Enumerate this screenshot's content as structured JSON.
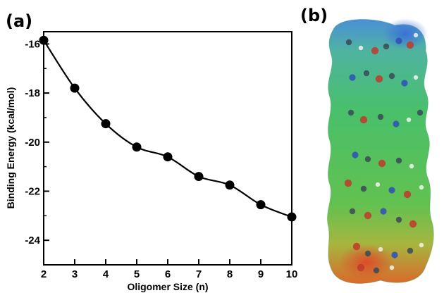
{
  "panels": {
    "a_label": "(a)",
    "b_label": "(b)"
  },
  "chart_data": {
    "type": "line",
    "title": "",
    "xlabel": "Oligomer Size (n)",
    "ylabel": "Binding Energy (kcal/mol)",
    "x": [
      2,
      3,
      4,
      5,
      6,
      7,
      8,
      9,
      10
    ],
    "series": [
      {
        "values": [
          -15.85,
          -17.8,
          -19.25,
          -20.2,
          -20.6,
          -21.4,
          -21.75,
          -22.55,
          -23.05
        ]
      }
    ],
    "xlim": [
      2,
      10
    ],
    "ylim": [
      -25,
      -15.5
    ],
    "xticks": [
      "2",
      "3",
      "4",
      "5",
      "6",
      "7",
      "8",
      "9",
      "10"
    ],
    "yticks": [
      "-16",
      "-18",
      "-20",
      "-22",
      "-24"
    ],
    "ytick_values": [
      -16,
      -18,
      -20,
      -22,
      -24
    ],
    "grid": false,
    "legend": "none",
    "line_color": "#000000",
    "marker_color": "#000000"
  },
  "molecule_image": {
    "colors": {
      "surface_mid": "#3fbf6a",
      "surface_top": "#3a8fd9",
      "surface_bottom": "#e0702a",
      "atom_oxygen": "#c0392b",
      "atom_nitrogen": "#2e4fb8",
      "atom_carbon": "#3a4a55",
      "atom_hydrogen": "#f2f2f2"
    }
  }
}
